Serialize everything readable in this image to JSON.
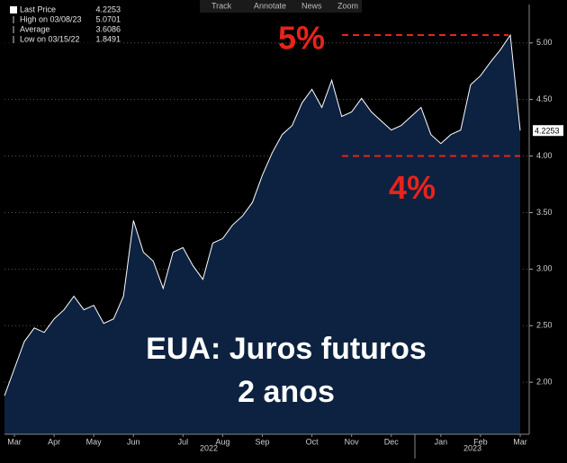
{
  "chart_data": {
    "type": "area",
    "toolbar": [
      "Track",
      "Annotate",
      "News",
      "Zoom"
    ],
    "stats": [
      {
        "label": "Last Price",
        "value": 4.2253
      },
      {
        "label": "High on 03/08/23",
        "value": 5.0701
      },
      {
        "label": "Average",
        "value": 3.6086
      },
      {
        "label": "Low on 03/15/22",
        "value": 1.8491
      }
    ],
    "title": "EUA: Juros futuros",
    "subtitle": "2 anos",
    "categories": [
      null,
      "Mar",
      null,
      null,
      null,
      "Apr",
      null,
      null,
      null,
      "May",
      null,
      null,
      null,
      "Jun",
      null,
      null,
      null,
      null,
      "Jul",
      null,
      null,
      null,
      "Aug",
      null,
      null,
      null,
      "Sep",
      null,
      null,
      null,
      null,
      "Oct",
      null,
      null,
      null,
      "Nov",
      null,
      null,
      null,
      "Dec",
      null,
      null,
      null,
      null,
      "Jan",
      null,
      null,
      null,
      "Feb",
      null,
      null,
      null,
      "Mar"
    ],
    "year_labels": [
      "2022",
      "2023"
    ],
    "series": [
      {
        "color": "#0d2240",
        "line_color": "#ffffff",
        "values": [
          1.88,
          2.12,
          2.36,
          2.48,
          2.44,
          2.56,
          2.64,
          2.76,
          2.64,
          2.68,
          2.52,
          2.56,
          2.76,
          3.43,
          3.15,
          3.07,
          2.83,
          3.15,
          3.19,
          3.03,
          2.91,
          3.23,
          3.27,
          3.39,
          3.47,
          3.59,
          3.83,
          4.03,
          4.19,
          4.27,
          4.47,
          4.59,
          4.43,
          4.67,
          4.35,
          4.39,
          4.51,
          4.39,
          4.31,
          4.23,
          4.27,
          4.35,
          4.43,
          4.19,
          4.11,
          4.19,
          4.23,
          4.63,
          4.71,
          4.83,
          4.94,
          5.07,
          4.2253
        ]
      }
    ],
    "reference_lines": [
      {
        "value": 5.07,
        "label": "5%",
        "color": "#e8231c"
      },
      {
        "value": 4.0,
        "label": "4%",
        "color": "#e8231c"
      }
    ],
    "ylim": [
      1.54,
      5.34
    ],
    "yticks": [
      {
        "value": 2,
        "label": "2.00"
      },
      {
        "value": 2.5,
        "label": "2.50"
      },
      {
        "value": 3,
        "label": "3.00"
      },
      {
        "value": 3.5,
        "label": "3.50"
      },
      {
        "value": 4,
        "label": "4.00"
      },
      {
        "value": 4.5,
        "label": "4.50"
      },
      {
        "value": 5,
        "label": "5.00"
      }
    ],
    "grid": true
  }
}
